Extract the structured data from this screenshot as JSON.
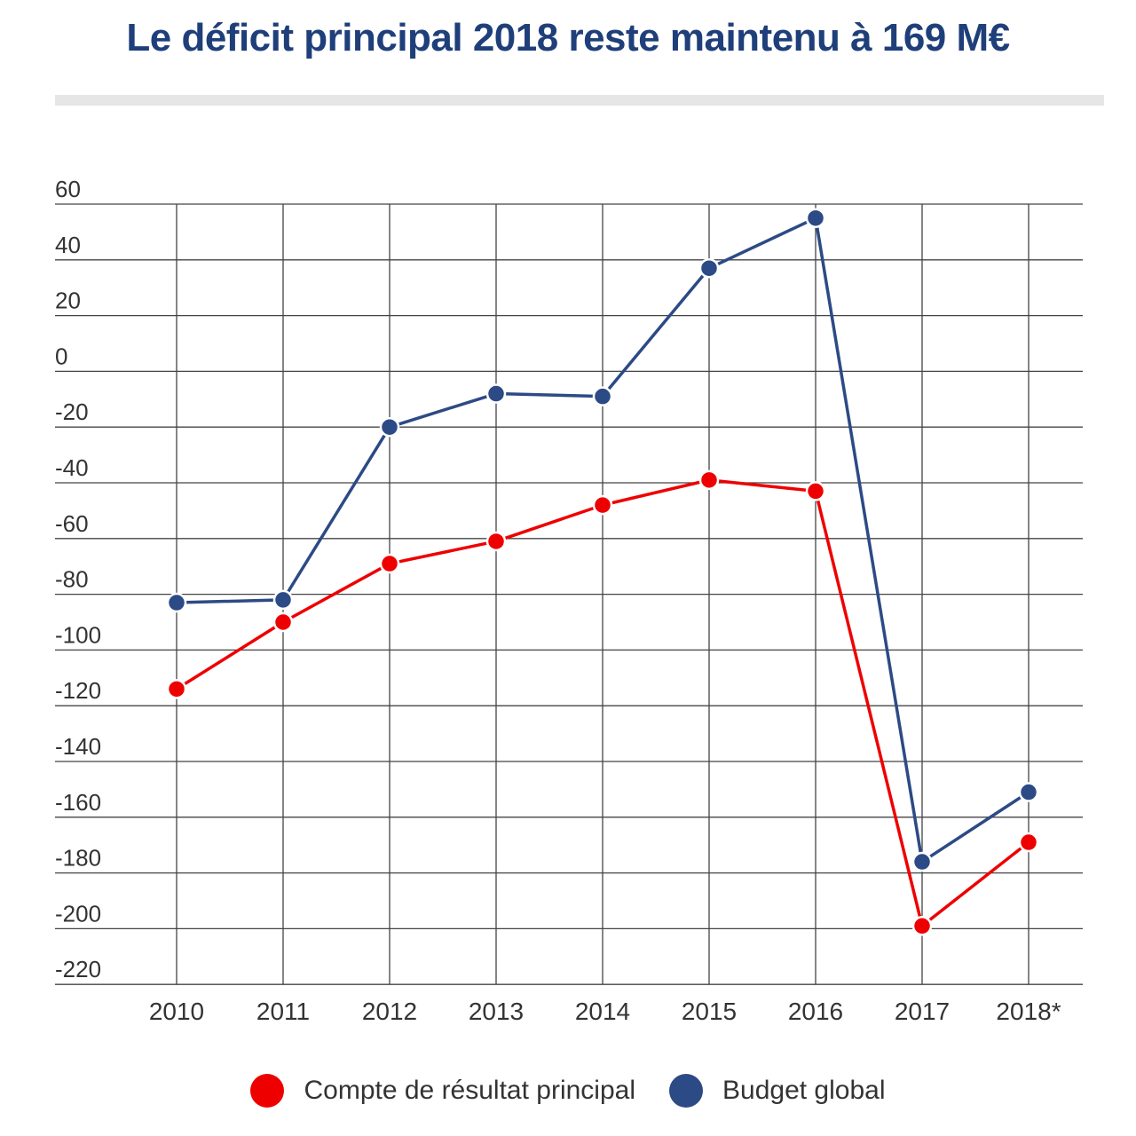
{
  "title": "Le déficit principal 2018 reste maintenu à 169 M€",
  "chart_data": {
    "type": "line",
    "title": "Le déficit principal 2018 reste maintenu à 169 M€",
    "xlabel": "",
    "ylabel": "",
    "categories": [
      "2010",
      "2011",
      "2012",
      "2013",
      "2014",
      "2015",
      "2016",
      "2017",
      "2018*"
    ],
    "yticks": [
      60,
      40,
      20,
      0,
      -20,
      -40,
      -60,
      -80,
      -100,
      -120,
      -140,
      -160,
      -180,
      -200,
      -220
    ],
    "ylim": [
      -220,
      60
    ],
    "grid": true,
    "legend_position": "bottom",
    "series": [
      {
        "name": "Compte de résultat principal",
        "color": "#ee0000",
        "values": [
          -114,
          -90,
          -69,
          -61,
          -48,
          -39,
          -43,
          -199,
          -169
        ]
      },
      {
        "name": "Budget global",
        "color": "#2c4a85",
        "values": [
          -83,
          -82,
          -20,
          -8,
          -9,
          37,
          55,
          -176,
          -151
        ]
      }
    ]
  }
}
